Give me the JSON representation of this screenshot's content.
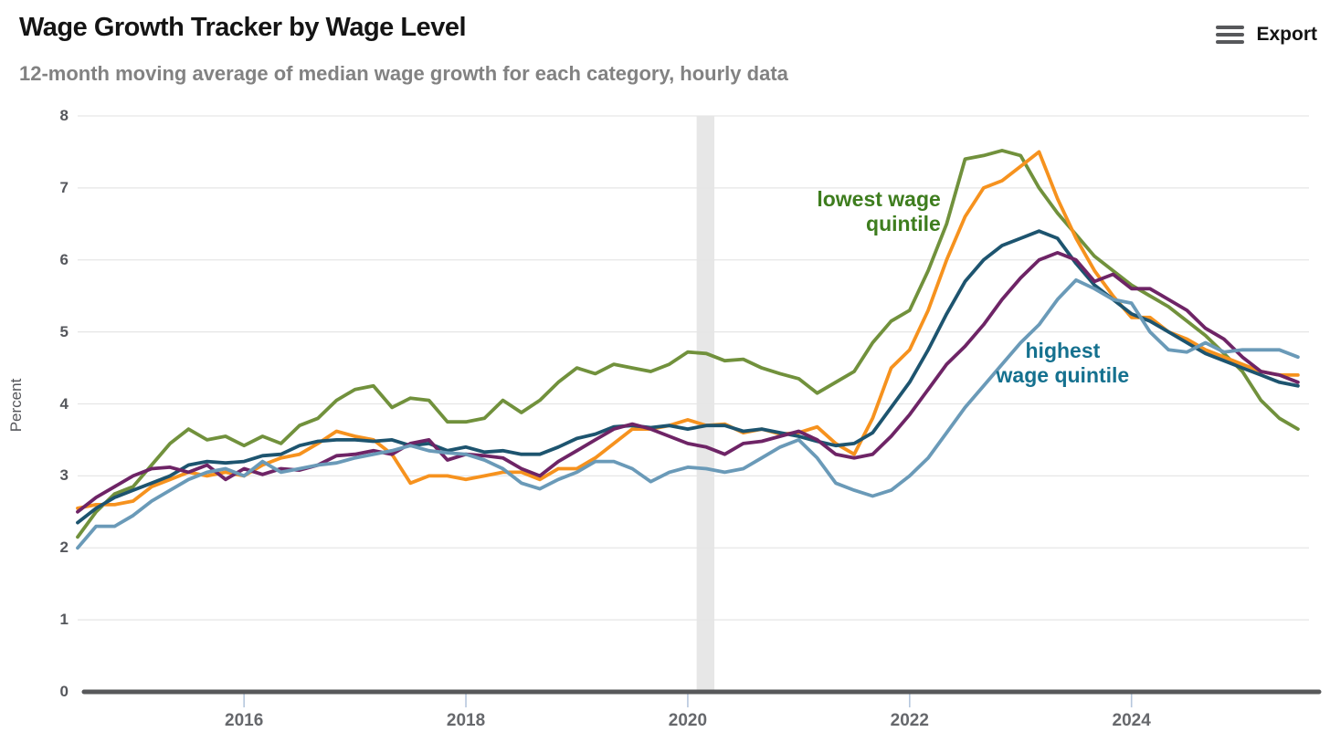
{
  "header": {
    "title": "Wage Growth Tracker by Wage Level",
    "subtitle": "12-month moving average of median wage growth for each category, hourly data",
    "export_label": "Export"
  },
  "chart_data": {
    "type": "line",
    "title": "Wage Growth Tracker by Wage Level",
    "subtitle": "12-month moving average of median wage growth for each category, hourly data",
    "ylabel": "Percent",
    "xlabel": "",
    "grid": true,
    "x_range": [
      2014.5,
      2025.6
    ],
    "y_range": [
      0,
      8
    ],
    "x_ticks": [
      2016,
      2018,
      2020,
      2022,
      2024
    ],
    "y_ticks": [
      0,
      1,
      2,
      3,
      4,
      5,
      6,
      7,
      8
    ],
    "recession_band_x": [
      2020.08,
      2020.24
    ],
    "x_start": 2014.5,
    "x_step_years": 0.166667,
    "series": [
      {
        "id": "green",
        "label": "lowest wage quintile",
        "color": "#71913C",
        "values": [
          2.15,
          2.5,
          2.75,
          2.85,
          3.15,
          3.45,
          3.65,
          3.5,
          3.55,
          3.42,
          3.55,
          3.45,
          3.7,
          3.8,
          4.05,
          4.2,
          4.25,
          3.95,
          4.08,
          4.05,
          3.75,
          3.75,
          3.8,
          4.05,
          3.88,
          4.05,
          4.3,
          4.5,
          4.42,
          4.55,
          4.5,
          4.45,
          4.55,
          4.72,
          4.7,
          4.6,
          4.62,
          4.5,
          4.42,
          4.35,
          4.15,
          4.3,
          4.45,
          4.85,
          5.15,
          5.3,
          5.85,
          6.5,
          7.4,
          7.45,
          7.52,
          7.45,
          7.0,
          6.65,
          6.35,
          6.05,
          5.85,
          5.65,
          5.5,
          5.35,
          5.15,
          4.95,
          4.7,
          4.45,
          4.05,
          3.8,
          3.65
        ]
      },
      {
        "id": "orange",
        "label": "",
        "color": "#F6921E",
        "values": [
          2.55,
          2.6,
          2.6,
          2.65,
          2.85,
          2.95,
          3.05,
          3.0,
          3.05,
          3.0,
          3.15,
          3.25,
          3.3,
          3.45,
          3.62,
          3.55,
          3.5,
          3.3,
          2.9,
          3.0,
          3.0,
          2.95,
          3.0,
          3.05,
          3.05,
          2.95,
          3.1,
          3.1,
          3.25,
          3.45,
          3.65,
          3.65,
          3.7,
          3.78,
          3.7,
          3.72,
          3.6,
          3.65,
          3.58,
          3.6,
          3.68,
          3.45,
          3.3,
          3.8,
          4.5,
          4.75,
          5.3,
          6.0,
          6.6,
          7.0,
          7.1,
          7.3,
          7.5,
          6.85,
          6.3,
          5.85,
          5.5,
          5.2,
          5.2,
          5.0,
          4.9,
          4.75,
          4.65,
          4.55,
          4.45,
          4.4,
          4.4
        ]
      },
      {
        "id": "navy",
        "label": "",
        "color": "#1D546F",
        "values": [
          2.35,
          2.55,
          2.7,
          2.8,
          2.9,
          3.0,
          3.15,
          3.2,
          3.18,
          3.2,
          3.28,
          3.3,
          3.42,
          3.48,
          3.5,
          3.5,
          3.48,
          3.5,
          3.42,
          3.45,
          3.35,
          3.4,
          3.33,
          3.35,
          3.3,
          3.3,
          3.4,
          3.52,
          3.58,
          3.68,
          3.7,
          3.67,
          3.7,
          3.65,
          3.7,
          3.7,
          3.62,
          3.65,
          3.6,
          3.55,
          3.48,
          3.42,
          3.45,
          3.6,
          3.95,
          4.3,
          4.75,
          5.25,
          5.7,
          6.0,
          6.2,
          6.3,
          6.4,
          6.3,
          5.95,
          5.65,
          5.45,
          5.25,
          5.15,
          5.0,
          4.85,
          4.7,
          4.6,
          4.5,
          4.4,
          4.3,
          4.25
        ]
      },
      {
        "id": "purple",
        "label": "",
        "color": "#6E2466",
        "values": [
          2.5,
          2.7,
          2.85,
          3.0,
          3.1,
          3.12,
          3.05,
          3.15,
          2.95,
          3.1,
          3.02,
          3.1,
          3.08,
          3.15,
          3.28,
          3.3,
          3.35,
          3.3,
          3.45,
          3.5,
          3.22,
          3.3,
          3.28,
          3.25,
          3.1,
          3.0,
          3.2,
          3.35,
          3.5,
          3.65,
          3.72,
          3.65,
          3.55,
          3.45,
          3.4,
          3.3,
          3.45,
          3.48,
          3.55,
          3.62,
          3.5,
          3.3,
          3.25,
          3.3,
          3.55,
          3.85,
          4.2,
          4.55,
          4.8,
          5.1,
          5.45,
          5.75,
          6.0,
          6.1,
          6.0,
          5.7,
          5.8,
          5.6,
          5.6,
          5.45,
          5.3,
          5.05,
          4.9,
          4.65,
          4.45,
          4.4,
          4.3
        ]
      },
      {
        "id": "lightblue",
        "label": "highest wage quintile",
        "color": "#6A9AB8",
        "values": [
          2.0,
          2.3,
          2.3,
          2.45,
          2.65,
          2.8,
          2.95,
          3.05,
          3.1,
          3.0,
          3.2,
          3.05,
          3.1,
          3.15,
          3.18,
          3.25,
          3.3,
          3.35,
          3.42,
          3.35,
          3.32,
          3.3,
          3.22,
          3.1,
          2.9,
          2.82,
          2.95,
          3.05,
          3.2,
          3.2,
          3.1,
          2.92,
          3.05,
          3.12,
          3.1,
          3.05,
          3.1,
          3.25,
          3.4,
          3.5,
          3.25,
          2.9,
          2.8,
          2.72,
          2.8,
          3.0,
          3.25,
          3.6,
          3.95,
          4.25,
          4.55,
          4.85,
          5.1,
          5.45,
          5.72,
          5.6,
          5.45,
          5.4,
          5.0,
          4.75,
          4.72,
          4.85,
          4.72,
          4.75,
          4.75,
          4.75,
          4.65
        ]
      }
    ],
    "annotations": [
      {
        "id": "lowest-wage-quintile",
        "lines": [
          "lowest wage",
          "quintile"
        ],
        "color": "#3E7D1E",
        "x": 2022.28,
        "y": 6.67,
        "align": "right"
      },
      {
        "id": "highest-wage-quintile",
        "lines": [
          "highest",
          "wage quintile"
        ],
        "color": "#15718F",
        "x": 2023.38,
        "y": 4.56,
        "align": "center"
      }
    ],
    "legend_position": "annotations-on-chart",
    "styles": {
      "gridline_color": "#e6e6e6",
      "recession_band_color": "#e7e7e7",
      "baseline_color": "#57585a",
      "x_tick_color": "#b6c7dd",
      "line_width": 3.8
    }
  }
}
